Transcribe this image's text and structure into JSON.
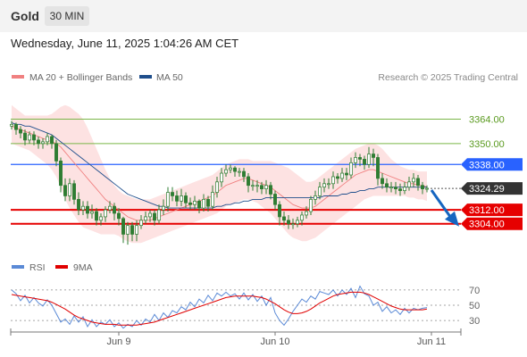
{
  "header": {
    "instrument": "Gold",
    "timeframe": "30 MIN",
    "datetime": "Wednesday, June 11, 2025 1:04:26 AM CET"
  },
  "colors": {
    "bollinger_fill": "#fde2e2",
    "ma20": "#f08080",
    "ma50": "#1f4e8c",
    "target_lines": "#7ab648",
    "pivot_line": "#2962ff",
    "support_lines": "#e60000",
    "price_tag": "#333333",
    "arrow": "#1565c0",
    "candle": "#2e7d32",
    "rsi": "#5b8ad6",
    "rsi_ma": "#e00000"
  },
  "chart_data": [
    {
      "type": "candlestick",
      "legend": [
        {
          "name": "MA 20 + Bollinger Bands",
          "color": "#f08080"
        },
        {
          "name": "MA 50",
          "color": "#1f4e8c"
        }
      ],
      "credit": "Research © 2025 Trading Central",
      "ylim": [
        3288,
        3376
      ],
      "levels": [
        {
          "label": "3364.00",
          "value": 3364,
          "kind": "target"
        },
        {
          "label": "3350.00",
          "value": 3350,
          "kind": "target"
        },
        {
          "label": "3338.00",
          "value": 3338,
          "kind": "pivot"
        },
        {
          "label": "3324.29",
          "value": 3324.29,
          "kind": "last"
        },
        {
          "label": "3312.00",
          "value": 3312,
          "kind": "support"
        },
        {
          "label": "3304.00",
          "value": 3304,
          "kind": "support"
        }
      ],
      "x_labels": [
        {
          "label": "Jun 9",
          "index": 24
        },
        {
          "label": "Jun 10",
          "index": 59
        },
        {
          "label": "Jun 11",
          "index": 94
        }
      ],
      "close": [
        3361,
        3358,
        3356,
        3352,
        3355,
        3352,
        3350,
        3351,
        3354,
        3350,
        3340,
        3326,
        3320,
        3327,
        3318,
        3312,
        3314,
        3310,
        3311,
        3306,
        3308,
        3312,
        3314,
        3310,
        3307,
        3298,
        3303,
        3298,
        3303,
        3306,
        3308,
        3310,
        3306,
        3312,
        3314,
        3322,
        3320,
        3317,
        3320,
        3316,
        3315,
        3317,
        3313,
        3318,
        3314,
        3322,
        3328,
        3333,
        3335,
        3336,
        3334,
        3334,
        3331,
        3326,
        3326,
        3326,
        3324,
        3326,
        3321,
        3315,
        3308,
        3306,
        3304,
        3304,
        3306,
        3309,
        3311,
        3318,
        3320,
        3325,
        3327,
        3327,
        3331,
        3330,
        3333,
        3332,
        3339,
        3342,
        3341,
        3338,
        3344,
        3342,
        3330,
        3327,
        3325,
        3325,
        3324,
        3323,
        3325,
        3328,
        3330,
        3326,
        3324,
        3324.3
      ],
      "open": [
        3360,
        3361,
        3358,
        3356,
        3352,
        3355,
        3352,
        3350,
        3351,
        3354,
        3350,
        3340,
        3326,
        3320,
        3327,
        3318,
        3312,
        3314,
        3310,
        3311,
        3306,
        3308,
        3312,
        3314,
        3310,
        3307,
        3298,
        3303,
        3298,
        3303,
        3306,
        3308,
        3310,
        3306,
        3312,
        3314,
        3322,
        3320,
        3317,
        3320,
        3316,
        3315,
        3317,
        3313,
        3318,
        3314,
        3322,
        3328,
        3333,
        3335,
        3336,
        3334,
        3334,
        3331,
        3326,
        3326,
        3326,
        3324,
        3326,
        3321,
        3315,
        3308,
        3306,
        3304,
        3304,
        3306,
        3309,
        3311,
        3318,
        3320,
        3325,
        3327,
        3327,
        3331,
        3330,
        3333,
        3332,
        3339,
        3342,
        3341,
        3338,
        3344,
        3342,
        3330,
        3327,
        3325,
        3325,
        3324,
        3323,
        3325,
        3328,
        3330,
        3326,
        3324
      ],
      "high": [
        3363,
        3362,
        3360,
        3358,
        3357,
        3357,
        3354,
        3353,
        3356,
        3355,
        3352,
        3342,
        3330,
        3330,
        3329,
        3322,
        3317,
        3317,
        3315,
        3313,
        3310,
        3314,
        3317,
        3316,
        3313,
        3308,
        3305,
        3305,
        3306,
        3309,
        3311,
        3312,
        3312,
        3315,
        3318,
        3325,
        3325,
        3323,
        3324,
        3322,
        3319,
        3320,
        3318,
        3321,
        3320,
        3326,
        3331,
        3336,
        3338,
        3338,
        3337,
        3336,
        3336,
        3333,
        3329,
        3329,
        3328,
        3329,
        3328,
        3323,
        3317,
        3311,
        3309,
        3307,
        3308,
        3311,
        3314,
        3320,
        3323,
        3328,
        3330,
        3330,
        3334,
        3333,
        3336,
        3336,
        3342,
        3345,
        3344,
        3343,
        3348,
        3347,
        3344,
        3333,
        3330,
        3328,
        3328,
        3327,
        3328,
        3331,
        3333,
        3332,
        3328,
        3326
      ],
      "low": [
        3358,
        3355,
        3353,
        3349,
        3350,
        3349,
        3347,
        3347,
        3349,
        3347,
        3337,
        3322,
        3317,
        3317,
        3315,
        3309,
        3309,
        3307,
        3307,
        3303,
        3303,
        3305,
        3310,
        3306,
        3303,
        3293,
        3292,
        3294,
        3294,
        3301,
        3304,
        3305,
        3303,
        3304,
        3309,
        3311,
        3317,
        3314,
        3314,
        3313,
        3312,
        3312,
        3310,
        3311,
        3311,
        3312,
        3319,
        3325,
        3331,
        3333,
        3331,
        3331,
        3328,
        3322,
        3323,
        3322,
        3321,
        3321,
        3318,
        3312,
        3303,
        3303,
        3301,
        3301,
        3302,
        3303,
        3307,
        3309,
        3315,
        3318,
        3322,
        3324,
        3324,
        3327,
        3328,
        3329,
        3330,
        3336,
        3337,
        3335,
        3336,
        3337,
        3326,
        3324,
        3322,
        3322,
        3321,
        3320,
        3321,
        3323,
        3325,
        3323,
        3321,
        3322
      ],
      "ma20": [
        3360,
        3359,
        3358,
        3357,
        3356,
        3355,
        3354,
        3353,
        3352,
        3351,
        3350,
        3348,
        3345,
        3342,
        3339,
        3336,
        3333,
        3330,
        3327,
        3324,
        3321,
        3318,
        3316,
        3314,
        3312,
        3310,
        3308,
        3307,
        3306,
        3306,
        3306,
        3306,
        3307,
        3308,
        3309,
        3310,
        3311,
        3312,
        3313,
        3314,
        3315,
        3316,
        3317,
        3318,
        3319,
        3320,
        3322,
        3324,
        3326,
        3327,
        3328,
        3329,
        3330,
        3330,
        3329,
        3328,
        3327,
        3326,
        3325,
        3323,
        3321,
        3319,
        3317,
        3315,
        3314,
        3313,
        3313,
        3313,
        3314,
        3316,
        3318,
        3320,
        3322,
        3324,
        3326,
        3328,
        3330,
        3332,
        3333,
        3334,
        3335,
        3335,
        3334,
        3333,
        3332,
        3331,
        3330,
        3329,
        3328,
        3327,
        3327,
        3326,
        3326,
        3325
      ],
      "ma50": [
        3362,
        3361,
        3361,
        3360,
        3360,
        3359,
        3358,
        3357,
        3356,
        3355,
        3353,
        3351,
        3349,
        3347,
        3345,
        3343,
        3341,
        3339,
        3337,
        3335,
        3333,
        3331,
        3329,
        3327,
        3325,
        3323,
        3321,
        3320,
        3319,
        3318,
        3317,
        3316,
        3315,
        3314,
        3314,
        3313,
        3313,
        3313,
        3313,
        3313,
        3313,
        3313,
        3313,
        3313,
        3313,
        3313,
        3314,
        3314,
        3315,
        3315,
        3316,
        3316,
        3317,
        3317,
        3318,
        3318,
        3318,
        3319,
        3319,
        3319,
        3319,
        3319,
        3319,
        3319,
        3319,
        3319,
        3319,
        3319,
        3319,
        3319,
        3320,
        3320,
        3320,
        3320,
        3321,
        3321,
        3322,
        3322,
        3323,
        3323,
        3324,
        3324,
        3325,
        3325,
        3325,
        3325,
        3325,
        3325,
        3325,
        3325,
        3325,
        3325,
        3325,
        3325
      ],
      "bb_upper": [
        3372,
        3370,
        3368,
        3366,
        3366,
        3366,
        3366,
        3366,
        3366,
        3367,
        3369,
        3371,
        3372,
        3371,
        3369,
        3367,
        3364,
        3359,
        3353,
        3347,
        3341,
        3335,
        3330,
        3326,
        3323,
        3321,
        3320,
        3319,
        3318,
        3318,
        3318,
        3318,
        3319,
        3320,
        3321,
        3322,
        3323,
        3324,
        3325,
        3326,
        3327,
        3328,
        3329,
        3330,
        3331,
        3332,
        3334,
        3336,
        3338,
        3339,
        3340,
        3341,
        3341,
        3341,
        3340,
        3340,
        3340,
        3340,
        3340,
        3339,
        3338,
        3337,
        3336,
        3334,
        3332,
        3330,
        3328,
        3328,
        3329,
        3331,
        3333,
        3335,
        3337,
        3339,
        3341,
        3343,
        3345,
        3347,
        3348,
        3349,
        3350,
        3350,
        3349,
        3347,
        3344,
        3341,
        3339,
        3337,
        3336,
        3335,
        3335,
        3334,
        3334,
        3334
      ],
      "bb_lower": [
        3350,
        3349,
        3348,
        3347,
        3346,
        3344,
        3342,
        3340,
        3338,
        3335,
        3331,
        3325,
        3318,
        3313,
        3309,
        3305,
        3302,
        3301,
        3300,
        3299,
        3298,
        3298,
        3298,
        3298,
        3297,
        3295,
        3294,
        3293,
        3293,
        3293,
        3294,
        3295,
        3296,
        3297,
        3298,
        3299,
        3300,
        3301,
        3302,
        3303,
        3304,
        3305,
        3306,
        3307,
        3308,
        3309,
        3310,
        3312,
        3314,
        3315,
        3316,
        3317,
        3318,
        3318,
        3317,
        3316,
        3314,
        3312,
        3310,
        3307,
        3304,
        3301,
        3298,
        3296,
        3295,
        3294,
        3294,
        3295,
        3296,
        3298,
        3300,
        3302,
        3304,
        3306,
        3308,
        3310,
        3312,
        3314,
        3316,
        3318,
        3319,
        3320,
        3320,
        3320,
        3320,
        3320,
        3320,
        3320,
        3320,
        3319,
        3319,
        3318,
        3318,
        3317
      ]
    },
    {
      "type": "line",
      "legend": [
        {
          "name": "RSI",
          "color": "#5b8ad6"
        },
        {
          "name": "9MA",
          "color": "#e00000"
        }
      ],
      "ylim": [
        15,
        85
      ],
      "y_ticks": [
        {
          "label": "70",
          "value": 70
        },
        {
          "label": "50",
          "value": 50
        },
        {
          "label": "30",
          "value": 30
        }
      ],
      "series": [
        {
          "name": "RSI",
          "values": [
            70,
            65,
            56,
            63,
            53,
            60,
            53,
            49,
            57,
            50,
            39,
            28,
            32,
            25,
            36,
            28,
            35,
            22,
            31,
            22,
            28,
            25,
            31,
            22,
            27,
            20,
            25,
            22,
            30,
            24,
            32,
            28,
            38,
            30,
            40,
            34,
            43,
            40,
            48,
            44,
            54,
            48,
            58,
            53,
            63,
            56,
            66,
            62,
            67,
            62,
            65,
            58,
            66,
            57,
            64,
            55,
            62,
            50,
            60,
            40,
            30,
            24,
            32,
            42,
            50,
            58,
            54,
            62,
            58,
            68,
            66,
            64,
            70,
            62,
            70,
            64,
            72,
            60,
            75,
            65,
            62,
            50,
            54,
            42,
            48,
            40,
            44,
            38,
            46,
            40,
            46,
            44,
            46,
            47
          ]
        },
        {
          "name": "9MA",
          "values": [
            64,
            63,
            62,
            61,
            60,
            59,
            58,
            57,
            56,
            54,
            51,
            48,
            45,
            41,
            37,
            34,
            32,
            30,
            28,
            27,
            26,
            25,
            25,
            25,
            24,
            24,
            24,
            24,
            24,
            25,
            26,
            27,
            28,
            30,
            32,
            34,
            36,
            38,
            40,
            42,
            44,
            46,
            48,
            50,
            52,
            54,
            56,
            58,
            60,
            61,
            62,
            62,
            62,
            62,
            62,
            61,
            60,
            58,
            55,
            52,
            48,
            44,
            41,
            39,
            39,
            40,
            42,
            45,
            49,
            53,
            56,
            59,
            62,
            64,
            65,
            66,
            67,
            67,
            67,
            66,
            64,
            61,
            58,
            55,
            52,
            49,
            47,
            45,
            44,
            44,
            44,
            44,
            44,
            45
          ]
        }
      ]
    }
  ]
}
